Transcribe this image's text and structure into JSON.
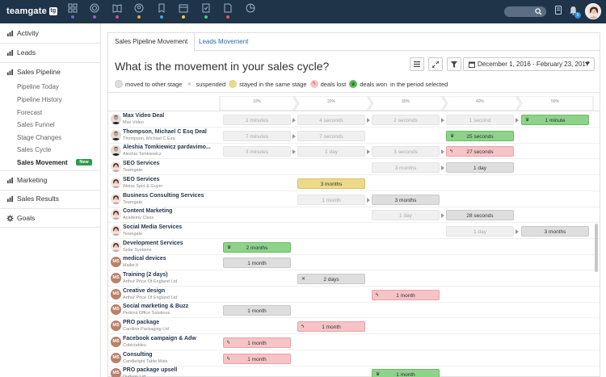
{
  "app": {
    "logo": "teamgate",
    "logo_mark": "tg"
  },
  "nav_icons": [
    {
      "name": "dashboard-icon",
      "dot": "#5b6be0"
    },
    {
      "name": "target-icon",
      "dot": "#b34fd1"
    },
    {
      "name": "book-icon",
      "dot": "#d14f8d"
    },
    {
      "name": "contacts-icon",
      "dot": "#f0a33c"
    },
    {
      "name": "deals-icon",
      "dot": "#3ca8e0"
    },
    {
      "name": "calendar-icon",
      "dot": "#f0d23c"
    },
    {
      "name": "tasks-icon",
      "dot": "#3cd08a"
    },
    {
      "name": "document-icon",
      "dot": "#e05b5b"
    },
    {
      "name": "pie-chart-icon",
      "dot": ""
    }
  ],
  "topbar": {
    "notification_count": "5"
  },
  "sidebar": {
    "activity": "Activity",
    "leads": "Leads",
    "sales_pipeline": "Sales Pipeline",
    "sub_items": [
      "Pipeline Today",
      "Pipeline History",
      "Forecast",
      "Sales Funnel",
      "Stage Changes",
      "Sales Cycle",
      "Sales Movement"
    ],
    "new_badge": "New",
    "marketing": "Marketing",
    "sales_results": "Sales Results",
    "goals": "Goals"
  },
  "tabs": {
    "active": "Sales Pipeline Movement",
    "inactive": "Leads Movement"
  },
  "page_title": "What is the movement in your sales cycle?",
  "date_range": "December 1, 2016 - February 23, 2017",
  "legend": {
    "moved": "moved to other stage",
    "suspended": "suspended",
    "stayed": "stayed in the same stage",
    "lost": "deals lost",
    "won": "deals won",
    "period": "in the period selected"
  },
  "stages": [
    "10%",
    "20%",
    "30%",
    "40%",
    "50%"
  ],
  "rows": [
    {
      "name": "Max Video Deal",
      "company": "Max Video",
      "avatar": "male",
      "cells": [
        {
          "stage": 0,
          "text": "2 minutes",
          "style": "faded"
        },
        {
          "stage": 1,
          "text": "4 seconds",
          "style": "faded"
        },
        {
          "stage": 2,
          "text": "2 seconds",
          "style": "faded"
        },
        {
          "stage": 3,
          "text": "1 second",
          "style": "faded"
        },
        {
          "stage": 4,
          "text": "1 minute",
          "style": "green"
        }
      ]
    },
    {
      "name": "Thompson, Michael C Esq Deal",
      "company": "Thompson, Michael C Esq",
      "avatar": "male",
      "cells": [
        {
          "stage": 0,
          "text": "7 minutes",
          "style": "faded"
        },
        {
          "stage": 1,
          "text": "7 seconds",
          "style": "faded"
        },
        {
          "stage": 3,
          "text": "25 seconds",
          "style": "green"
        }
      ]
    },
    {
      "name": "Aleshia Tomkiewicz pardavimo...",
      "company": "Aleshia Tomkiewicz",
      "avatar": "male",
      "cells": [
        {
          "stage": 0,
          "text": "3 minutes",
          "style": "faded"
        },
        {
          "stage": 1,
          "text": "1 day",
          "style": "faded"
        },
        {
          "stage": 2,
          "text": "3 seconds",
          "style": "faded"
        },
        {
          "stage": 3,
          "text": "27 seconds",
          "style": "red"
        }
      ]
    },
    {
      "name": "SEO Services",
      "company": "Teamgate",
      "avatar": "female",
      "cells": [
        {
          "stage": 2,
          "text": "3 months",
          "style": "faded"
        },
        {
          "stage": 3,
          "text": "1 day",
          "style": "grey"
        }
      ]
    },
    {
      "name": "SEO Services",
      "company": "Weiss Spirt & Guyer",
      "avatar": "female",
      "cells": [
        {
          "stage": 1,
          "text": "3 months",
          "style": "yellow"
        }
      ]
    },
    {
      "name": "Business Consulting Services",
      "company": "Teamgate",
      "avatar": "female",
      "cells": [
        {
          "stage": 1,
          "text": "1 month",
          "style": "faded"
        },
        {
          "stage": 2,
          "text": "3 months",
          "style": "grey"
        }
      ]
    },
    {
      "name": "Content Marketing",
      "company": "Academy Class",
      "avatar": "female",
      "cells": [
        {
          "stage": 2,
          "text": "1 day",
          "style": "faded"
        },
        {
          "stage": 3,
          "text": "28 seconds",
          "style": "grey"
        }
      ]
    },
    {
      "name": "Social Media Services",
      "company": "Teamgate",
      "avatar": "female",
      "cells": [
        {
          "stage": 3,
          "text": "1 day",
          "style": "faded"
        },
        {
          "stage": 4,
          "text": "3 months",
          "style": "grey"
        }
      ]
    },
    {
      "name": "Development Services",
      "company": "Solar Systems",
      "avatar": "female",
      "cells": [
        {
          "stage": 0,
          "text": "2 months",
          "style": "green"
        }
      ]
    },
    {
      "name": "medical devices",
      "company": "Mailer.lt",
      "avatar": "ms",
      "cells": [
        {
          "stage": 0,
          "text": "1 month",
          "style": "grey"
        }
      ]
    },
    {
      "name": "Training (2 days)",
      "company": "Arthur Price Of England Ltd",
      "avatar": "ms",
      "cells": [
        {
          "stage": 1,
          "text": "2 days",
          "style": "grey-suspended"
        }
      ]
    },
    {
      "name": "Creative design",
      "company": "Arthur Price Of England Ltd",
      "avatar": "ms",
      "cells": [
        {
          "stage": 2,
          "text": "1 month",
          "style": "red"
        }
      ]
    },
    {
      "name": "Social marketing & Buzz",
      "company": "Perkins Office Solutions",
      "avatar": "ms",
      "cells": [
        {
          "stage": 0,
          "text": "1 month",
          "style": "grey"
        }
      ]
    },
    {
      "name": "PRO package",
      "company": "Caroline Packaging Ltd",
      "avatar": "ms",
      "cells": [
        {
          "stage": 1,
          "text": "1 month",
          "style": "red"
        }
      ]
    },
    {
      "name": "Facebook campaign & Adw",
      "company": "Cobictables",
      "avatar": "ms",
      "cells": [
        {
          "stage": 0,
          "text": "1 month",
          "style": "red"
        }
      ]
    },
    {
      "name": "Consulting",
      "company": "Candlelight Table Mats",
      "avatar": "ms",
      "cells": [
        {
          "stage": 0,
          "text": "1 month",
          "style": "red"
        }
      ]
    },
    {
      "name": "PRO package upsell",
      "company": "Dudson Ltd",
      "avatar": "ms",
      "cells": [
        {
          "stage": 2,
          "text": "1 month",
          "style": "green"
        }
      ]
    }
  ],
  "colors": {
    "topbar": "#1f3349",
    "won": "#8fd289",
    "lost": "#f6c3c6",
    "stayed": "#ecd98a",
    "moved": "#dedede",
    "link": "#2d6aa8",
    "new_badge": "#2e9b45"
  }
}
